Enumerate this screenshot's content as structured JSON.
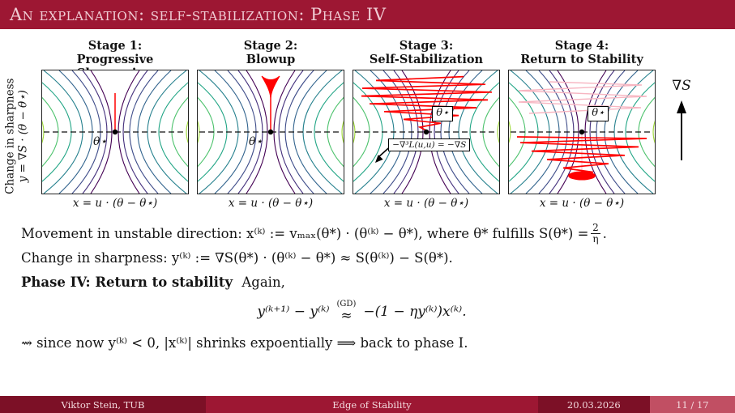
{
  "header": {
    "title": "An explanation: self-stabilization: Phase IV"
  },
  "figure": {
    "ylabel_line1": "Change in sharpness",
    "ylabel_line2": "y = ∇S · (θ − θ⋆)",
    "xlabel": "x = u · (θ − θ⋆)",
    "theta_star": "θ⋆",
    "gradient_label": "∇S",
    "annotation3": "−∇³L(u,u) = −∇S",
    "panels": [
      {
        "stage": "Stage 1:",
        "title": "Progressive Sharpening",
        "overlay": "spike"
      },
      {
        "stage": "Stage 2:",
        "title": "Blowup",
        "overlay": "blowup"
      },
      {
        "stage": "Stage 3:",
        "title": "Self-Stabilization",
        "overlay": "grow"
      },
      {
        "stage": "Stage 4:",
        "title": "Return to Stability",
        "overlay": "decay"
      }
    ],
    "contour_colors": [
      "#440154",
      "#46327e",
      "#3f4d8a",
      "#32648e",
      "#26818e",
      "#21a585",
      "#4cc26c",
      "#9fda3a"
    ],
    "trajectory_color": "#ff0000",
    "ghost_color": "#f7b6c2"
  },
  "body": {
    "line1_pre": "Movement in unstable direction: x⁽ᵏ⁾ := vₘₐₓ(θ*) · (θ⁽ᵏ⁾ − θ*), where θ* fulfills S(θ*) =",
    "frac_num": "2",
    "frac_den": "η",
    "line1_end": ".",
    "line2": "Change in sharpness: y⁽ᵏ⁾ := ∇S(θ*) · (θ⁽ᵏ⁾ − θ*) ≈ S(θ⁽ᵏ⁾) − S(θ*).",
    "line3_bold": "Phase IV: Return to stability",
    "line3_rest": "Again,",
    "eq_left": "y⁽ᵏ⁺¹⁾ − y⁽ᵏ⁾",
    "eq_sup": "(GD)",
    "eq_rel": "≈",
    "eq_right": "−(1 − ηy⁽ᵏ⁾)x⁽ᵏ⁾.",
    "line5": "⇝ since now y⁽ᵏ⁾ < 0, |x⁽ᵏ⁾| shrinks expoentially ⟹ back to phase I."
  },
  "footer": {
    "author": "Viktor Stein, TUB",
    "title": "Edge of Stability",
    "date": "20.03.2026",
    "page": "11 / 17"
  }
}
